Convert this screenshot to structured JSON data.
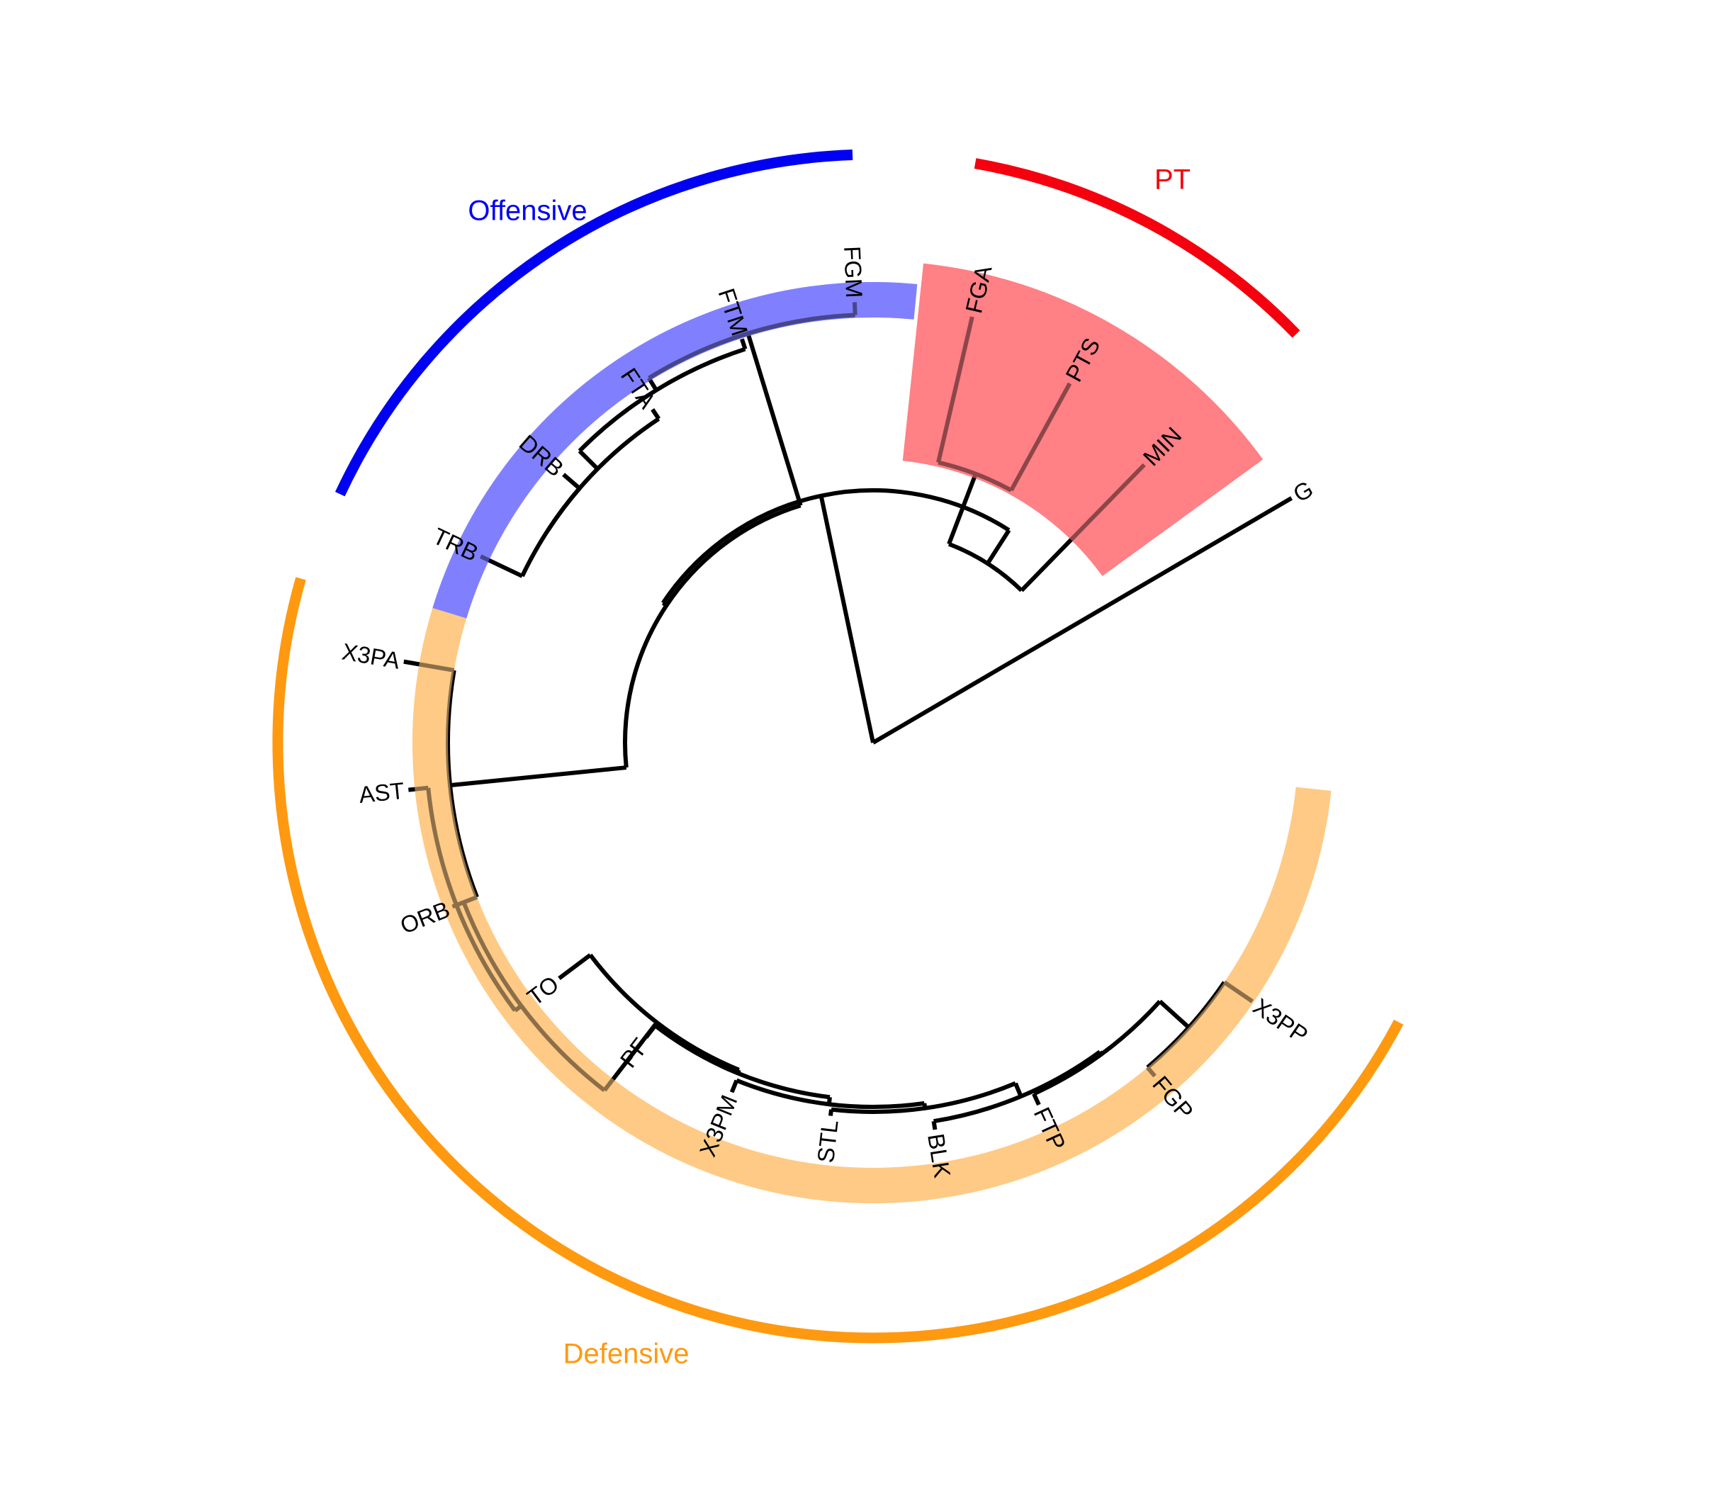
{
  "diagram": {
    "type": "circular-dendrogram",
    "title": "",
    "leaves": [
      "G",
      "MIN",
      "PTS",
      "FGA",
      "FGM",
      "FTM",
      "FTA",
      "DRB",
      "TRB",
      "X3PA",
      "AST",
      "ORB",
      "TO",
      "PF",
      "X3PM",
      "STL",
      "BLK",
      "FTP",
      "FGP",
      "X3PP"
    ],
    "groups": [
      {
        "label": "PT",
        "color": "#f4000e",
        "band_color": "#ff8085",
        "members": [
          "MIN",
          "PTS",
          "FGA"
        ]
      },
      {
        "label": "Offensive",
        "color": "#0000f2",
        "band_color": "#8080ff",
        "members": [
          "FGM",
          "FTM",
          "FTA",
          "DRB",
          "TRB"
        ]
      },
      {
        "label": "Defensive",
        "color": "#ff9910",
        "band_color": "#ffca85",
        "members": [
          "X3PA",
          "AST",
          "ORB",
          "TO",
          "PF",
          "X3PM",
          "STL",
          "BLK",
          "FTP",
          "FGP",
          "X3PP"
        ]
      }
    ],
    "branch_color": "#000000"
  }
}
